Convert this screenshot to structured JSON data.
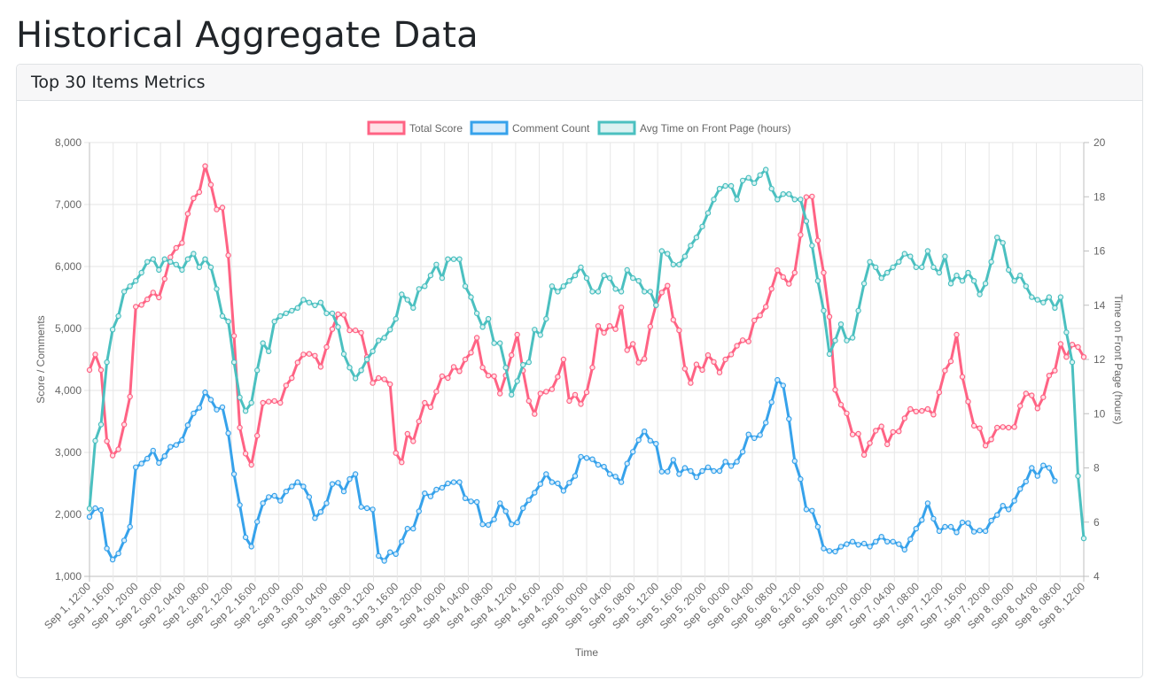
{
  "page": {
    "title": "Historical Aggregate Data"
  },
  "card": {
    "title": "Top 30 Items Metrics"
  },
  "chart_data": {
    "type": "line",
    "xlabel": "Time",
    "ylabel_left": "Score / Comments",
    "ylabel_right": "Time on Front Page (hours)",
    "ylim_left": [
      1000,
      8000
    ],
    "ylim_right": [
      4,
      20
    ],
    "left_ticks": [
      "1,000",
      "2,000",
      "3,000",
      "4,000",
      "5,000",
      "6,000",
      "7,000",
      "8,000"
    ],
    "right_ticks": [
      "4",
      "6",
      "8",
      "10",
      "12",
      "14",
      "16",
      "18",
      "20"
    ],
    "x_ticks": [
      "Sep 1, 12:00",
      "Sep 1, 16:00",
      "Sep 1, 20:00",
      "Sep 2, 00:00",
      "Sep 2, 04:00",
      "Sep 2, 08:00",
      "Sep 2, 12:00",
      "Sep 2, 16:00",
      "Sep 2, 20:00",
      "Sep 3, 00:00",
      "Sep 3, 04:00",
      "Sep 3, 08:00",
      "Sep 3, 12:00",
      "Sep 3, 16:00",
      "Sep 3, 20:00",
      "Sep 4, 00:00",
      "Sep 4, 04:00",
      "Sep 4, 08:00",
      "Sep 4, 12:00",
      "Sep 4, 16:00",
      "Sep 4, 20:00",
      "Sep 5, 00:00",
      "Sep 5, 04:00",
      "Sep 5, 08:00",
      "Sep 5, 12:00",
      "Sep 5, 16:00",
      "Sep 5, 20:00",
      "Sep 6, 00:00",
      "Sep 6, 04:00",
      "Sep 6, 08:00",
      "Sep 6, 12:00",
      "Sep 6, 16:00",
      "Sep 6, 20:00",
      "Sep 7, 00:00",
      "Sep 7, 04:00",
      "Sep 7, 08:00",
      "Sep 7, 12:00",
      "Sep 7, 16:00",
      "Sep 7, 20:00",
      "Sep 8, 00:00",
      "Sep 8, 04:00",
      "Sep 8, 08:00",
      "Sep 8, 12:00"
    ],
    "x_step_hours": 1,
    "legend_position": "top-center",
    "grid": true,
    "series": [
      {
        "name": "Total Score",
        "axis": "left",
        "color": "#ff6384",
        "values": [
          4330,
          4580,
          4330,
          3180,
          2950,
          3050,
          3450,
          3900,
          5350,
          5380,
          5470,
          5580,
          5500,
          5800,
          6150,
          6300,
          6380,
          6850,
          7100,
          7200,
          7620,
          7320,
          6920,
          6950,
          6180,
          4880,
          3400,
          2980,
          2800,
          3270,
          3800,
          3820,
          3830,
          3800,
          4080,
          4200,
          4450,
          4580,
          4590,
          4560,
          4380,
          4700,
          4990,
          5230,
          5220,
          4970,
          4970,
          4930,
          4540,
          4120,
          4200,
          4180,
          4100,
          2990,
          2840,
          3300,
          3180,
          3500,
          3800,
          3730,
          3980,
          4230,
          4200,
          4380,
          4310,
          4500,
          4610,
          4850,
          4370,
          4240,
          4230,
          3950,
          4240,
          4570,
          4900,
          4320,
          3830,
          3620,
          3950,
          3980,
          4020,
          4220,
          4500,
          3830,
          3930,
          3780,
          3970,
          4370,
          5040,
          4930,
          5040,
          4990,
          5340,
          4650,
          4750,
          4450,
          4510,
          5030,
          5380,
          5580,
          5690,
          5140,
          4970,
          4350,
          4120,
          4420,
          4330,
          4570,
          4460,
          4290,
          4500,
          4580,
          4720,
          4810,
          4790,
          5130,
          5210,
          5350,
          5640,
          5940,
          5830,
          5720,
          5900,
          6510,
          7120,
          7130,
          6420,
          5900,
          5190,
          4010,
          3770,
          3630,
          3290,
          3300,
          2960,
          3150,
          3350,
          3420,
          3130,
          3330,
          3340,
          3550,
          3700,
          3660,
          3670,
          3700,
          3610,
          3970,
          4320,
          4470,
          4900,
          4220,
          3820,
          3430,
          3390,
          3110,
          3210,
          3400,
          3410,
          3400,
          3410,
          3750,
          3950,
          3920,
          3710,
          3890,
          4240,
          4320,
          4750,
          4540,
          4740,
          4700,
          4540
        ]
      },
      {
        "name": "Comment Count",
        "axis": "left",
        "color": "#36a2eb",
        "values": [
          1960,
          2100,
          2070,
          1450,
          1270,
          1370,
          1580,
          1800,
          2760,
          2820,
          2900,
          3030,
          2830,
          2940,
          3090,
          3120,
          3200,
          3440,
          3630,
          3720,
          3970,
          3850,
          3690,
          3730,
          3310,
          2650,
          2150,
          1630,
          1480,
          1880,
          2180,
          2280,
          2300,
          2220,
          2370,
          2450,
          2520,
          2450,
          2280,
          1940,
          2040,
          2180,
          2490,
          2510,
          2370,
          2570,
          2650,
          2120,
          2100,
          2080,
          1330,
          1250,
          1390,
          1360,
          1560,
          1770,
          1770,
          2050,
          2340,
          2290,
          2400,
          2430,
          2500,
          2520,
          2520,
          2260,
          2210,
          2200,
          1840,
          1830,
          1920,
          2180,
          2050,
          1840,
          1870,
          2100,
          2230,
          2350,
          2490,
          2650,
          2520,
          2500,
          2380,
          2510,
          2620,
          2930,
          2910,
          2890,
          2800,
          2770,
          2650,
          2610,
          2520,
          2820,
          3010,
          3200,
          3340,
          3190,
          3140,
          2690,
          2690,
          2880,
          2650,
          2750,
          2700,
          2600,
          2700,
          2760,
          2700,
          2700,
          2850,
          2780,
          2850,
          3010,
          3290,
          3230,
          3280,
          3480,
          3810,
          4170,
          4080,
          3540,
          2860,
          2570,
          2080,
          2060,
          1800,
          1450,
          1410,
          1400,
          1480,
          1520,
          1560,
          1510,
          1530,
          1480,
          1560,
          1640,
          1560,
          1560,
          1520,
          1430,
          1600,
          1770,
          1910,
          2180,
          1930,
          1730,
          1800,
          1800,
          1710,
          1870,
          1860,
          1720,
          1740,
          1730,
          1900,
          1990,
          2140,
          2080,
          2220,
          2410,
          2530,
          2750,
          2620,
          2790,
          2750,
          2540
        ]
      },
      {
        "name": "Avg Time on Front Page (hours)",
        "axis": "right",
        "color": "#4bc0c0",
        "values": [
          6.5,
          9,
          9.6,
          11.9,
          13.1,
          13.6,
          14.5,
          14.7,
          14.9,
          15.2,
          15.6,
          15.7,
          15.3,
          15.7,
          15.6,
          15.5,
          15.3,
          15.7,
          15.9,
          15.4,
          15.7,
          15.4,
          14.6,
          13.6,
          13.4,
          11.9,
          10.6,
          10.1,
          10.4,
          11.6,
          12.6,
          12.3,
          13.4,
          13.6,
          13.7,
          13.8,
          13.9,
          14.2,
          14.1,
          14,
          14.1,
          13.7,
          13.7,
          13.2,
          12.2,
          11.7,
          11.3,
          11.6,
          12,
          12.3,
          12.7,
          12.8,
          13.1,
          13.5,
          14.4,
          14.2,
          13.9,
          14.6,
          14.7,
          15.1,
          15.5,
          15,
          15.7,
          15.7,
          15.7,
          14.7,
          14.3,
          13.7,
          13.2,
          13.5,
          12.6,
          12.6,
          11.7,
          10.7,
          11.2,
          11.8,
          11.9,
          13.1,
          12.9,
          13.5,
          14.7,
          14.5,
          14.7,
          14.9,
          15.1,
          15.4,
          15,
          14.5,
          14.5,
          15.1,
          15,
          14.6,
          14.5,
          15.3,
          15,
          14.9,
          14.5,
          14.5,
          14,
          16,
          15.9,
          15.5,
          15.5,
          15.8,
          16.2,
          16.5,
          16.9,
          17.4,
          17.9,
          18.3,
          18.4,
          18.4,
          17.9,
          18.6,
          18.7,
          18.5,
          18.8,
          19,
          18.3,
          17.9,
          18.1,
          18.1,
          17.9,
          17.9,
          17.1,
          16.2,
          14.9,
          13.8,
          12.2,
          12.7,
          13.3,
          12.7,
          12.8,
          13.8,
          14.8,
          15.6,
          15.4,
          15,
          15.2,
          15.4,
          15.6,
          15.9,
          15.8,
          15.4,
          15.4,
          16,
          15.4,
          15.2,
          15.8,
          14.8,
          15.1,
          14.9,
          15.2,
          14.9,
          14.4,
          14.8,
          15.6,
          16.5,
          16.3,
          15.3,
          14.9,
          15.1,
          14.7,
          14.3,
          14.2,
          14.1,
          14.3,
          13.9,
          14.3,
          13,
          11.9,
          7.7,
          5.4
        ]
      }
    ]
  }
}
